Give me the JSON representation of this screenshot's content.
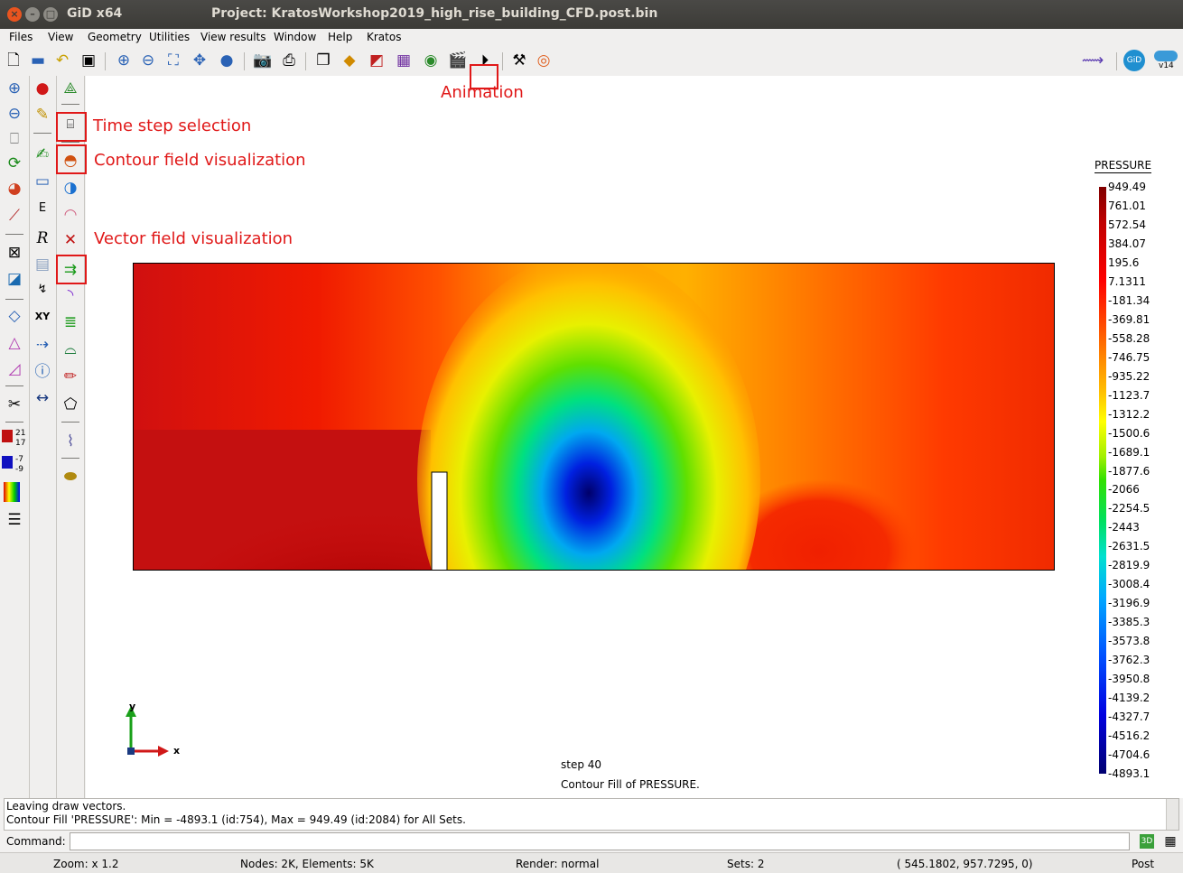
{
  "window": {
    "app_title": "GiD x64",
    "project_title": "Project: KratosWorkshop2019_high_rise_building_CFD.post.bin"
  },
  "menu": [
    "Files",
    "View",
    "Geometry",
    "Utilities",
    "View results",
    "Window",
    "Help",
    "Kratos"
  ],
  "toolbar": {
    "icons": [
      "new-file-icon",
      "open-folder-icon",
      "undo-icon",
      "save-icon",
      "zoom-in-icon",
      "zoom-out-icon",
      "zoom-frame-icon",
      "pan-icon",
      "rotate-sphere-icon",
      "camera-icon",
      "print-icon",
      "copy-icon",
      "layers-icon",
      "contour-icon",
      "graph-icon",
      "mesh-icon",
      "clapperboard-icon",
      "play-icon",
      "tools-icon",
      "help-lifebuoy-icon",
      "kratos-icon",
      "gid-logo-icon",
      "toggle-icon"
    ],
    "version_label": "v14",
    "gid_label": "GiD"
  },
  "annotations": {
    "animation": "Animation",
    "time_step": "Time step selection",
    "contour": "Contour field visualization",
    "vector": "Vector field visualization"
  },
  "legend": {
    "title": "PRESSURE",
    "labels": [
      "949.49",
      "761.01",
      "572.54",
      "384.07",
      "195.6",
      "7.1311",
      "-181.34",
      "-369.81",
      "-558.28",
      "-746.75",
      "-935.22",
      "-1123.7",
      "-1312.2",
      "-1500.6",
      "-1689.1",
      "-1877.6",
      "-2066",
      "-2254.5",
      "-2443",
      "-2631.5",
      "-2819.9",
      "-3008.4",
      "-3196.9",
      "-3385.3",
      "-3573.8",
      "-3762.3",
      "-3950.8",
      "-4139.2",
      "-4327.7",
      "-4516.2",
      "-4704.6",
      "-4893.1"
    ]
  },
  "axes": {
    "x": "x",
    "y": "y"
  },
  "step_text": "step 40",
  "contour_text": "Contour Fill of PRESSURE.",
  "messages": [
    "Leaving draw vectors.",
    "Contour Fill 'PRESSURE': Min = -4893.1 (id:754), Max = 949.49 (id:2084) for All Sets."
  ],
  "command": {
    "label": "Command:",
    "value": ""
  },
  "status": {
    "zoom": "Zoom: x 1.2",
    "nodes": "Nodes: 2K, Elements: 5K",
    "render": "Render: normal",
    "sets": "Sets: 2",
    "coords": "( 545.1802,  957.7295,  0)",
    "mode": "Post"
  },
  "left_tools": {
    "badge_top": "21",
    "badge_top2": "17",
    "badge_bottom": "-7",
    "badge_bottom2": "-9",
    "xy_label": "XY",
    "r_label": "R",
    "e_label": "E"
  }
}
